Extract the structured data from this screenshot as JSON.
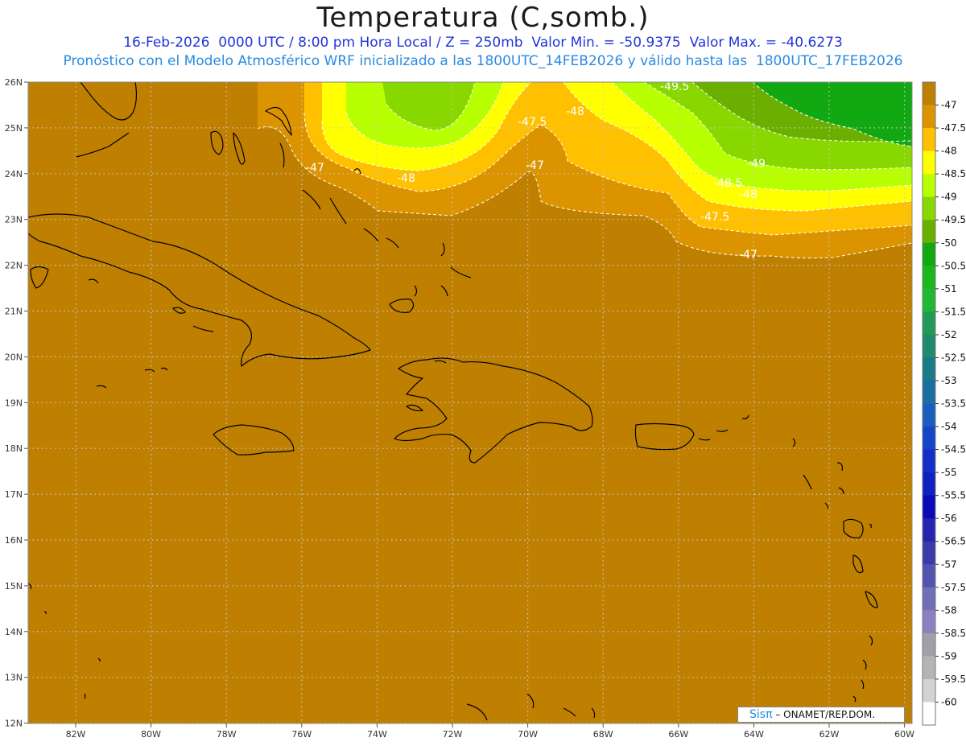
{
  "header": {
    "title": "Temperatura (C,somb.)",
    "line1": "16-Feb-2026  0000 UTC / 8:00 pm Hora Local / Z = 250mb  Valor Min. = -50.9375  Valor Max. = -40.6273",
    "line2": "Pronóstico con el Modelo Atmosférico WRF inicializado a las 1800UTC_14FEB2026 y válido hasta las  1800UTC_17FEB2026"
  },
  "axes": {
    "lon_labels": [
      "82W",
      "80W",
      "78W",
      "76W",
      "74W",
      "72W",
      "70W",
      "68W",
      "66W",
      "64W",
      "62W",
      "60W"
    ],
    "lat_labels": [
      "26N",
      "25N",
      "24N",
      "23N",
      "22N",
      "21N",
      "20N",
      "19N",
      "18N",
      "17N",
      "16N",
      "15N",
      "14N",
      "13N",
      "12N"
    ]
  },
  "contour_labels": [
    "-49.5",
    "-48",
    "-47.5",
    "-47",
    "-48",
    "-47",
    "-49",
    "-48.5",
    "-48",
    "-47.5",
    "-47"
  ],
  "colorbar": {
    "labels": [
      "-47",
      "-47.5",
      "-48",
      "-48.5",
      "-49",
      "-49.5",
      "-50",
      "-50.5",
      "-51",
      "-51.5",
      "-52",
      "-52.5",
      "-53",
      "-53.5",
      "-54",
      "-54.5",
      "-55",
      "-55.5",
      "-56",
      "-56.5",
      "-57",
      "-57.5",
      "-58",
      "-58.5",
      "-59",
      "-59.5",
      "-60"
    ],
    "colors": [
      "#bf7f00",
      "#db9400",
      "#ffc000",
      "#ffff00",
      "#b8ff00",
      "#88d800",
      "#6bb000",
      "#11a811",
      "#1ab81a",
      "#23b833",
      "#229a55",
      "#1f8a70",
      "#1a7a88",
      "#1b6ea0",
      "#1b5cc0",
      "#1644c8",
      "#1230c8",
      "#0f20c0",
      "#0a0ab8",
      "#2424b0",
      "#3a3aa8",
      "#5454b0",
      "#7070b8",
      "#8c80c0",
      "#a0a0a8",
      "#b4b4b4",
      "#d2d2d2",
      "#ffffff"
    ]
  },
  "field_colors": {
    "base": "#bf7f00",
    "l47_5": "#db9400",
    "l48": "#ffc000",
    "l48_5": "#ffff00",
    "l49": "#b8ff00",
    "l49_5": "#88d800",
    "l50": "#6bb000",
    "l50_5": "#11a811"
  },
  "credit": {
    "sis": "Sisπ",
    "org": "– ONAMET/REP.DOM."
  }
}
